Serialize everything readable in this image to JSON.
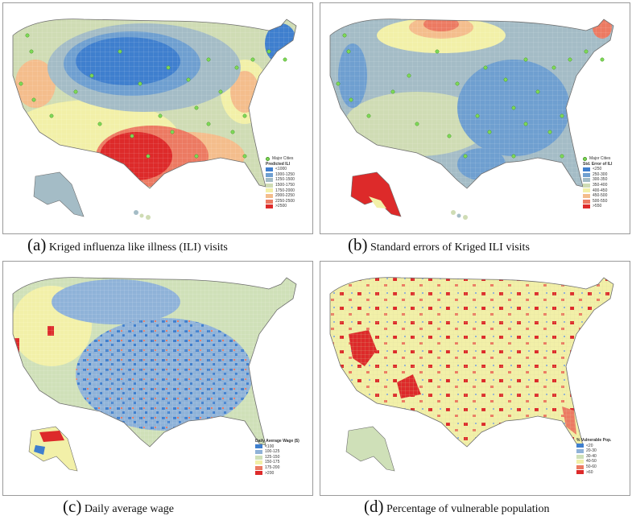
{
  "panels": [
    {
      "id": "a",
      "letter": "(a)",
      "caption": "Kriged influenza like illness (ILI) visits",
      "legend": {
        "marker_label": "Major Cities",
        "title": "Predicted ILI",
        "classes": [
          {
            "label": "<1000",
            "color": "#3f7fce"
          },
          {
            "label": "1000-1250",
            "color": "#6f9fd0"
          },
          {
            "label": "1250-1500",
            "color": "#a4bcc6"
          },
          {
            "label": "1500-1750",
            "color": "#cfdcb4"
          },
          {
            "label": "1750-2000",
            "color": "#f2f0a8"
          },
          {
            "label": "2000-2250",
            "color": "#f4bd8c"
          },
          {
            "label": "2250-2500",
            "color": "#ec7a62"
          },
          {
            "label": ">2500",
            "color": "#dd2a2a"
          }
        ]
      }
    },
    {
      "id": "b",
      "letter": "(b)",
      "caption": "Standard errors of Kriged ILI visits",
      "legend": {
        "marker_label": "Major Cities",
        "title": "Std. Error of ILI",
        "classes": [
          {
            "label": "<250",
            "color": "#3f7fce"
          },
          {
            "label": "250-300",
            "color": "#6f9fd0"
          },
          {
            "label": "300-350",
            "color": "#a4bcc6"
          },
          {
            "label": "350-400",
            "color": "#cfdcb4"
          },
          {
            "label": "400-450",
            "color": "#f2f0a8"
          },
          {
            "label": "450-500",
            "color": "#f4bd8c"
          },
          {
            "label": "500-550",
            "color": "#ec7a62"
          },
          {
            "label": ">550",
            "color": "#dd2a2a"
          }
        ]
      }
    },
    {
      "id": "c",
      "letter": "(c)",
      "caption": "Daily average wage",
      "legend": {
        "title": "Daily Average Wage ($)",
        "classes": [
          {
            "label": "<100",
            "color": "#3f7fce"
          },
          {
            "label": "100-125",
            "color": "#8fb2d8"
          },
          {
            "label": "125-150",
            "color": "#cfe0b8"
          },
          {
            "label": "150-175",
            "color": "#f2f0a8"
          },
          {
            "label": "175-200",
            "color": "#ec7a62"
          },
          {
            "label": ">200",
            "color": "#dd2a2a"
          }
        ]
      }
    },
    {
      "id": "d",
      "letter": "(d)",
      "caption": "Percentage of vulnerable population",
      "legend": {
        "title": "% Vulnerable Pop.",
        "classes": [
          {
            "label": "<20",
            "color": "#3f7fce"
          },
          {
            "label": "20-30",
            "color": "#8fb2d8"
          },
          {
            "label": "30-40",
            "color": "#cfe0b8"
          },
          {
            "label": "40-50",
            "color": "#f2f0a8"
          },
          {
            "label": "50-60",
            "color": "#ec7a62"
          },
          {
            "label": ">60",
            "color": "#dd2a2a"
          }
        ]
      }
    }
  ],
  "colors": {
    "outline": "#6e6e6e",
    "city_marker": "#7ed957"
  }
}
